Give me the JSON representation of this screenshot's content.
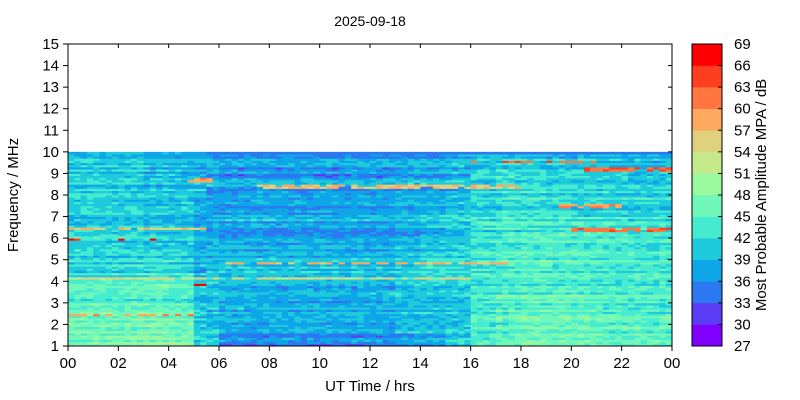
{
  "chart_data": {
    "type": "heatmap",
    "title": "2025-09-18",
    "xlabel": "UT Time / hrs",
    "ylabel": "Frequency / MHz",
    "xlim": [
      0,
      24
    ],
    "ylim": [
      1,
      15
    ],
    "x_ticks": [
      "00",
      "02",
      "04",
      "06",
      "08",
      "10",
      "12",
      "14",
      "16",
      "18",
      "20",
      "22",
      "00"
    ],
    "y_ticks": [
      "1",
      "2",
      "3",
      "4",
      "5",
      "6",
      "7",
      "8",
      "9",
      "10",
      "11",
      "12",
      "13",
      "14",
      "15"
    ],
    "data_freq_max": 10,
    "colorbar": {
      "label": "Most Probable Amplitude MPA / dB",
      "ticks": [
        "27",
        "30",
        "33",
        "36",
        "39",
        "42",
        "45",
        "48",
        "51",
        "54",
        "57",
        "60",
        "63",
        "66",
        "69"
      ],
      "levels": [
        27,
        30,
        33,
        36,
        39,
        42,
        45,
        48,
        51,
        54,
        57,
        60,
        63,
        66,
        69
      ],
      "colors": [
        "#7f00ff",
        "#5a3cf4",
        "#2c78f0",
        "#0ea6e8",
        "#1ecbdc",
        "#46ecd0",
        "#70f8bb",
        "#98f99e",
        "#c4ea8c",
        "#e0d27c",
        "#ffa860",
        "#ff7640",
        "#ff3e20",
        "#ff0000"
      ]
    },
    "freq_bands_mhz": [
      1,
      2,
      3,
      4,
      5,
      6,
      7,
      8,
      9
    ],
    "hourly_typical_db": [
      [
        46,
        46,
        47,
        48,
        47,
        40,
        34,
        34,
        34,
        34,
        34,
        34,
        34,
        35,
        36,
        40,
        44,
        45,
        46,
        46,
        46,
        45,
        45,
        45
      ],
      [
        46,
        46,
        46,
        47,
        46,
        40,
        39,
        39,
        39,
        39,
        39,
        39,
        39,
        40,
        40,
        41,
        44,
        45,
        46,
        46,
        46,
        45,
        45,
        45
      ],
      [
        45,
        45,
        45,
        46,
        45,
        40,
        39,
        39,
        39,
        39,
        39,
        39,
        39,
        40,
        40,
        41,
        44,
        45,
        46,
        46,
        45,
        45,
        44,
        44
      ],
      [
        43,
        43,
        43,
        44,
        43,
        40,
        39,
        39,
        39,
        39,
        39,
        39,
        39,
        40,
        41,
        41,
        44,
        44,
        45,
        45,
        44,
        44,
        44,
        44
      ],
      [
        42,
        42,
        42,
        42,
        42,
        39,
        39,
        39,
        39,
        39,
        39,
        39,
        39,
        40,
        41,
        41,
        43,
        44,
        44,
        44,
        44,
        43,
        43,
        43
      ],
      [
        42,
        42,
        42,
        41,
        41,
        39,
        38,
        38,
        38,
        38,
        38,
        38,
        38,
        39,
        40,
        41,
        42,
        43,
        44,
        44,
        43,
        43,
        42,
        42
      ],
      [
        41,
        41,
        41,
        40,
        40,
        38,
        38,
        38,
        38,
        38,
        38,
        38,
        38,
        39,
        40,
        41,
        42,
        43,
        43,
        43,
        42,
        42,
        42,
        42
      ],
      [
        40,
        40,
        40,
        39,
        39,
        38,
        38,
        38,
        38,
        38,
        38,
        38,
        38,
        39,
        39,
        40,
        41,
        42,
        42,
        42,
        41,
        41,
        41,
        41
      ],
      [
        40,
        40,
        40,
        39,
        39,
        38,
        37,
        37,
        37,
        37,
        37,
        37,
        37,
        38,
        38,
        39,
        40,
        41,
        41,
        40,
        40,
        40,
        39,
        39
      ]
    ],
    "bright_lines": [
      {
        "freq": 2.45,
        "start": 0,
        "end": 5.0,
        "db": 60
      },
      {
        "freq": 3.85,
        "start": 5.0,
        "end": 5.6,
        "db": 66
      },
      {
        "freq": 4.15,
        "start": 0,
        "end": 16,
        "db": 55
      },
      {
        "freq": 4.85,
        "start": 5.6,
        "end": 18,
        "db": 58
      },
      {
        "freq": 6.45,
        "start": 0,
        "end": 5.5,
        "db": 56
      },
      {
        "freq": 5.95,
        "start": 0,
        "end": 0.3,
        "db": 66
      },
      {
        "freq": 5.95,
        "start": 2.0,
        "end": 2.4,
        "db": 66
      },
      {
        "freq": 5.95,
        "start": 3.1,
        "end": 3.3,
        "db": 66
      },
      {
        "freq": 8.4,
        "start": 7.5,
        "end": 18,
        "db": 57
      },
      {
        "freq": 8.7,
        "start": 4.6,
        "end": 5.6,
        "db": 60
      },
      {
        "freq": 9.55,
        "start": 16,
        "end": 21,
        "db": 62
      },
      {
        "freq": 9.2,
        "start": 20.5,
        "end": 24,
        "db": 63
      },
      {
        "freq": 7.5,
        "start": 19.5,
        "end": 22,
        "db": 60
      },
      {
        "freq": 6.4,
        "start": 20,
        "end": 24,
        "db": 62
      }
    ]
  }
}
